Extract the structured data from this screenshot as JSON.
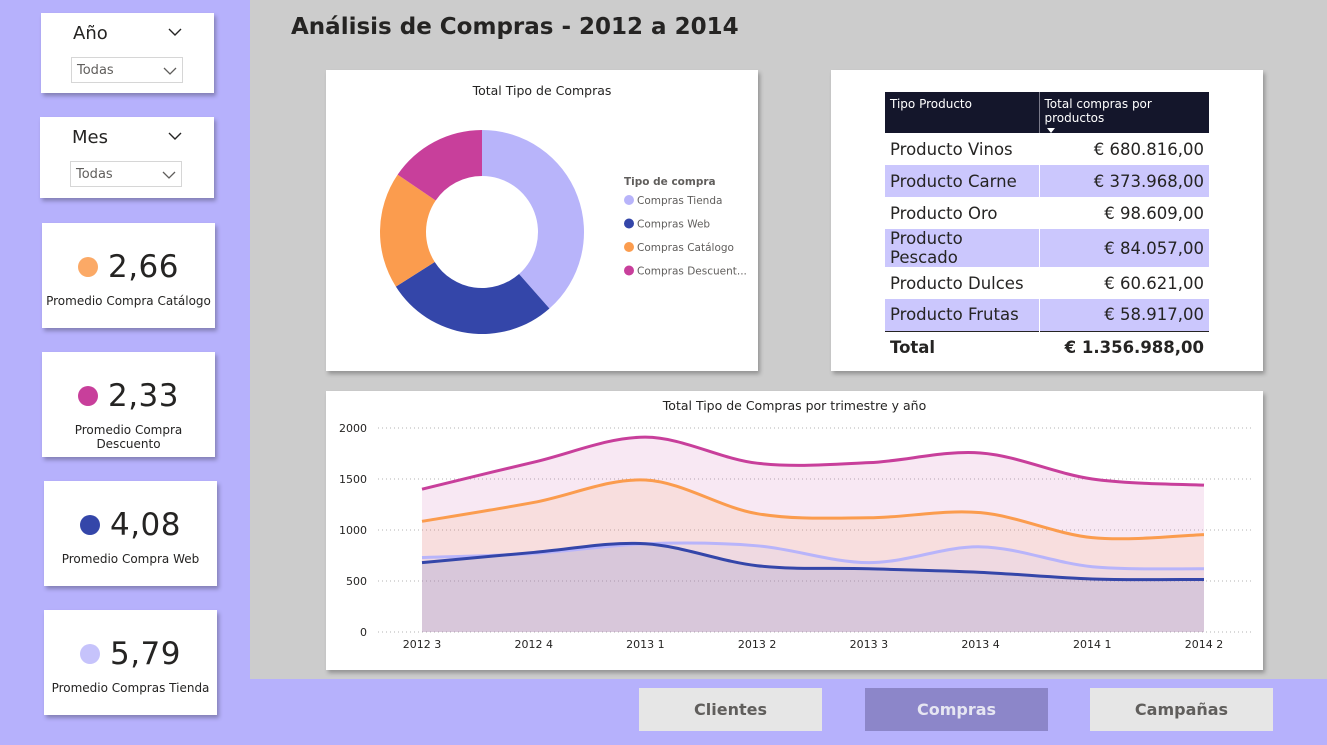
{
  "page_title": "Análisis de Compras - 2012 a 2014",
  "colors": {
    "compras_tienda": "#b8b4fa",
    "compras_web": "#3446a9",
    "compras_catalogo": "#fb9c4e",
    "compras_descuento": "#c83f9b",
    "sidebar": "#b6b1fc",
    "table_header": "#14162b"
  },
  "slicers": [
    {
      "title": "Año",
      "value": "Todas"
    },
    {
      "title": "Mes",
      "value": "Todas"
    }
  ],
  "kpis": [
    {
      "value": "2,66",
      "label": "Promedio Compra Catálogo",
      "color": "#fba966"
    },
    {
      "value": "2,33",
      "label": "Promedio Compra Descuento",
      "color": "#c83f9b"
    },
    {
      "value": "4,08",
      "label": "Promedio Compra Web",
      "color": "#3446a9"
    },
    {
      "value": "5,79",
      "label": "Promedio Compras Tienda",
      "color": "#c6c3fb"
    }
  ],
  "table": {
    "headers": [
      "Tipo Producto",
      "Total compras por productos"
    ],
    "rows": [
      {
        "name": "Producto Vinos",
        "value": "€ 680.816,00"
      },
      {
        "name": "Producto Carne",
        "value": "€ 373.968,00"
      },
      {
        "name": "Producto Oro",
        "value": "€ 98.609,00"
      },
      {
        "name": "Producto Pescado",
        "value": "€ 84.057,00"
      },
      {
        "name": "Producto Dulces",
        "value": "€ 60.621,00"
      },
      {
        "name": "Producto Frutas",
        "value": "€ 58.917,00"
      }
    ],
    "total": {
      "name": "Total",
      "value": "€ 1.356.988,00"
    }
  },
  "nav": [
    {
      "label": "Clientes",
      "active": false
    },
    {
      "label": "Compras",
      "active": true
    },
    {
      "label": "Campañas",
      "active": false
    }
  ],
  "chart_data": [
    {
      "type": "pie",
      "title": "Total Tipo de Compras",
      "legend_title": "Tipo de compra",
      "legend_placement": "right",
      "categories": [
        "Compras Tienda",
        "Compras Web",
        "Compras Catálogo",
        "Compras Descuent..."
      ],
      "values": [
        38.5,
        27.5,
        18.5,
        15.5
      ],
      "colors": [
        "#b8b4fa",
        "#3446a9",
        "#fb9c4e",
        "#c83f9b"
      ]
    },
    {
      "type": "area",
      "title": "Total Tipo de Compras por trimestre y año",
      "categories": [
        "2012 3",
        "2012 4",
        "2013 1",
        "2013 2",
        "2013 3",
        "2013 4",
        "2014 1",
        "2014 2"
      ],
      "ylim": [
        0,
        2000
      ],
      "yticks": [
        "0",
        "500",
        "1000",
        "1500",
        "2000"
      ],
      "grid": true,
      "series": [
        {
          "name": "Compras Tienda",
          "values": [
            730,
            770,
            865,
            845,
            680,
            835,
            640,
            620
          ],
          "color": "#b8b4fa"
        },
        {
          "name": "Compras Web",
          "values": [
            680,
            780,
            865,
            650,
            620,
            585,
            520,
            515
          ],
          "color": "#3446a9"
        },
        {
          "name": "Compras Catálogo",
          "values": [
            1085,
            1270,
            1490,
            1160,
            1120,
            1170,
            925,
            955
          ],
          "color": "#fb9c4e"
        },
        {
          "name": "Compras Descuent...",
          "values": [
            1400,
            1665,
            1910,
            1655,
            1660,
            1755,
            1500,
            1440
          ],
          "color": "#c83f9b"
        }
      ]
    }
  ]
}
